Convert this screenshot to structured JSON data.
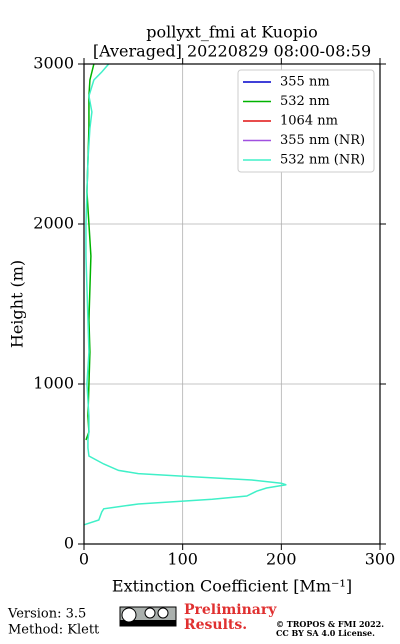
{
  "chart_data": {
    "type": "line",
    "title": [
      "pollyxt_fmi at Kuopio",
      "[Averaged] 20220829 08:00-08:59"
    ],
    "x_label": "Extinction Coefficient [Mm⁻¹]",
    "y_label": "Height (m)",
    "xlim": [
      0,
      300
    ],
    "xticks": [
      0,
      100,
      200,
      300
    ],
    "ylim": [
      0,
      3000
    ],
    "yticks": [
      0,
      1000,
      2000,
      3000
    ],
    "grid": true,
    "legend": "upper right",
    "y": [
      120,
      150,
      200,
      220,
      250,
      280,
      300,
      330,
      350,
      370,
      380,
      400,
      420,
      440,
      460,
      500,
      550,
      600,
      650,
      700,
      800,
      1000,
      1200,
      1400,
      1600,
      1800,
      2000,
      2200,
      2400,
      2600,
      2700,
      2800,
      2900,
      2950,
      3000
    ],
    "series": [
      {
        "name": "355 nm",
        "color": "#0000cc",
        "values": [
          null,
          null,
          null,
          null,
          null,
          null,
          null,
          null,
          null,
          null,
          null,
          null,
          null,
          null,
          null,
          null,
          null,
          null,
          null,
          null,
          null,
          null,
          null,
          null,
          null,
          null,
          null,
          null,
          null,
          null,
          null,
          null,
          null,
          null,
          null
        ]
      },
      {
        "name": "532 nm",
        "color": "#00b300",
        "values": [
          null,
          null,
          null,
          null,
          null,
          null,
          null,
          null,
          null,
          null,
          null,
          null,
          null,
          null,
          null,
          null,
          null,
          null,
          2,
          5,
          4,
          5,
          6,
          5,
          6,
          7,
          5,
          3,
          4,
          5,
          5,
          5,
          6,
          8,
          10
        ]
      },
      {
        "name": "1064 nm",
        "color": "#e01010",
        "values": [
          null,
          null,
          null,
          null,
          null,
          null,
          null,
          null,
          null,
          null,
          null,
          null,
          null,
          null,
          null,
          null,
          null,
          null,
          null,
          null,
          null,
          null,
          null,
          null,
          null,
          null,
          null,
          null,
          null,
          null,
          null,
          null,
          null,
          null,
          null
        ]
      },
      {
        "name": "355 nm (NR)",
        "color": "#a050e0",
        "values": [
          null,
          null,
          null,
          null,
          null,
          null,
          null,
          null,
          null,
          null,
          null,
          null,
          null,
          null,
          null,
          null,
          null,
          null,
          null,
          null,
          null,
          null,
          null,
          null,
          null,
          null,
          null,
          null,
          null,
          null,
          null,
          null,
          null,
          null,
          null
        ]
      },
      {
        "name": "532 nm (NR)",
        "color": "#40f0c8",
        "values": [
          0,
          15,
          18,
          20,
          55,
          130,
          165,
          175,
          185,
          205,
          200,
          170,
          110,
          55,
          35,
          20,
          5,
          4,
          4,
          5,
          5,
          3,
          5,
          4,
          3,
          2,
          2,
          3,
          4,
          6,
          8,
          5,
          10,
          18,
          25
        ]
      }
    ]
  },
  "footer": {
    "version": "Version: 3.5",
    "method": "Method: Klett",
    "preliminary": [
      "Preliminary",
      "Results."
    ],
    "copyright": [
      "© TROPOS & FMI 2022.",
      "CC BY SA 4.0 License."
    ]
  }
}
